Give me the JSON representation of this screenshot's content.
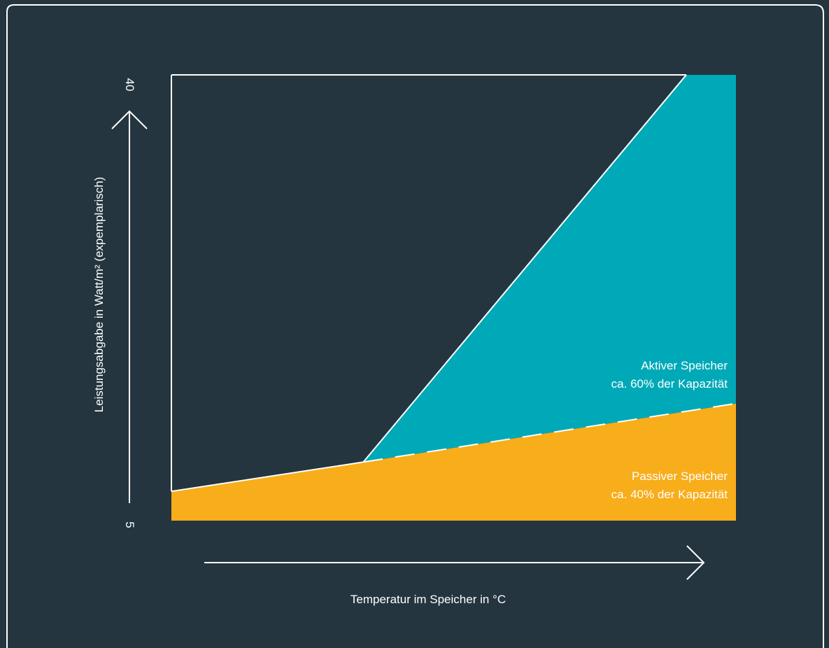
{
  "colors": {
    "background": "#24353f",
    "active": "#00a9b8",
    "passive": "#f8ad1a",
    "line": "#ffffff"
  },
  "chart_data": {
    "type": "area",
    "title": "",
    "xlabel": "Temperatur im Speicher in °C",
    "ylabel": "Leistungsabgabe in Watt/m² (expemplarisch)",
    "yticks": [
      "5",
      "40"
    ],
    "ylim": [
      5,
      40
    ],
    "xlim": [
      0,
      1
    ],
    "grid": false,
    "series": [
      {
        "name": "Passiver Speicher",
        "caption": "ca. 40% der Kapazität",
        "color": "#f8ad1a",
        "x": [
          0,
          0.34,
          1
        ],
        "y": [
          7.3,
          9.6,
          14.2
        ]
      },
      {
        "name": "Aktiver Speicher",
        "caption": "ca. 60% der Kapazität",
        "color": "#00a9b8",
        "x": [
          0.34,
          0.912,
          1
        ],
        "y": [
          9.6,
          40,
          40
        ]
      }
    ]
  }
}
